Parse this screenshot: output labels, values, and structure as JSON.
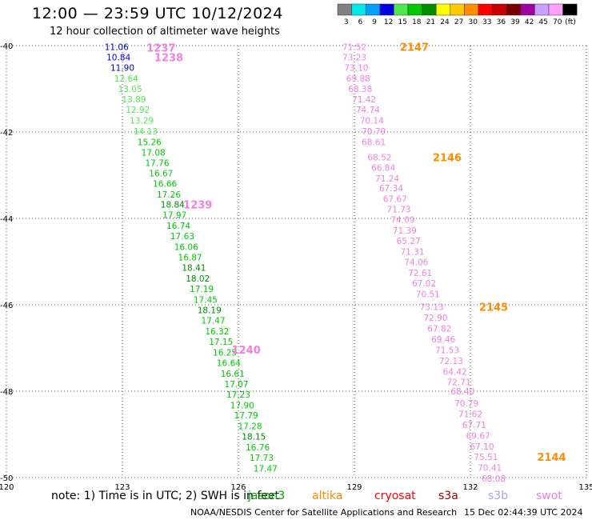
{
  "header": {
    "title": "12:00 — 23:59 UTC 10/12/2024",
    "subtitle": "12 hour collection of altimeter wave heights"
  },
  "footer": {
    "note": "note: 1) Time is in UTC; 2) SWH is in feet",
    "credit": "NOAA/NESDIS Center for Satellite Applications and Research",
    "timestamp": "15 Dec 02:44:39 UTC 2024"
  },
  "satellites": [
    {
      "name": "jason3",
      "color": "#00a000"
    },
    {
      "name": "altika",
      "color": "#ff8c00"
    },
    {
      "name": "cryosat",
      "color": "#ff0000"
    },
    {
      "name": "s3a",
      "color": "#a00000"
    },
    {
      "name": "s3b",
      "color": "#b0a0f0"
    },
    {
      "name": "swot",
      "color": "#f080e0"
    }
  ],
  "chart_data": {
    "type": "scatter",
    "title": "12:00 — 23:59 UTC 10/12/2024",
    "subtitle": "12 hour collection of altimeter wave heights",
    "xlim": [
      120,
      135
    ],
    "ylim": [
      -50,
      -40
    ],
    "x_ticks": [
      120,
      123,
      126,
      129,
      132,
      135
    ],
    "y_ticks": [
      -40,
      -42,
      -44,
      -46,
      -48,
      -50
    ],
    "grid": true,
    "color_scale": {
      "unit": "(ft)",
      "bins": [
        {
          "label": "3",
          "color": "#808080"
        },
        {
          "label": "6",
          "color": "#00e8e8"
        },
        {
          "label": "9",
          "color": "#00a0ff"
        },
        {
          "label": "12",
          "color": "#0000e0"
        },
        {
          "label": "15",
          "color": "#50e850"
        },
        {
          "label": "18",
          "color": "#00c800"
        },
        {
          "label": "21",
          "color": "#008c00"
        },
        {
          "label": "24",
          "color": "#ffff00"
        },
        {
          "label": "27",
          "color": "#ffc800"
        },
        {
          "label": "30",
          "color": "#ff8c00"
        },
        {
          "label": "33",
          "color": "#ff0000"
        },
        {
          "label": "36",
          "color": "#c80000"
        },
        {
          "label": "39",
          "color": "#780000"
        },
        {
          "label": "42",
          "color": "#a000a0"
        },
        {
          "label": "45",
          "color": "#c8a0ff"
        },
        {
          "label": "70",
          "color": "#ffa0ff"
        },
        {
          "label": "",
          "color": "#000000"
        }
      ]
    },
    "track_labels": [
      {
        "text": "1237",
        "lon": 124.0,
        "lat": -40.05,
        "color": "#f080e0"
      },
      {
        "text": "1238",
        "lon": 124.2,
        "lat": -40.27,
        "color": "#f080e0"
      },
      {
        "text": "1239",
        "lon": 124.95,
        "lat": -43.68,
        "color": "#f080e0"
      },
      {
        "text": "1240",
        "lon": 126.2,
        "lat": -47.04,
        "color": "#f080e0"
      },
      {
        "text": "2147",
        "lon": 130.55,
        "lat": -40.03,
        "color": "#ff8c00"
      },
      {
        "text": "2146",
        "lon": 131.4,
        "lat": -42.58,
        "color": "#ff8c00"
      },
      {
        "text": "2145",
        "lon": 132.6,
        "lat": -46.05,
        "color": "#ff8c00"
      },
      {
        "text": "2144",
        "lon": 134.1,
        "lat": -49.52,
        "color": "#ff8c00"
      }
    ],
    "series": [
      {
        "name": "jason3",
        "points": [
          {
            "lon": 122.85,
            "lat": -40.03,
            "v": "11.06",
            "color": "#0000e0"
          },
          {
            "lon": 122.9,
            "lat": -40.27,
            "v": "10.84",
            "color": "#0000e0"
          },
          {
            "lon": 123.0,
            "lat": -40.51,
            "v": "11.90",
            "color": "#0000e0"
          },
          {
            "lon": 123.1,
            "lat": -40.76,
            "v": "12.64",
            "color": "#50e850"
          },
          {
            "lon": 123.2,
            "lat": -41.0,
            "v": "13.05",
            "color": "#50e850"
          },
          {
            "lon": 123.3,
            "lat": -41.24,
            "v": "13.89",
            "color": "#50e850"
          },
          {
            "lon": 123.4,
            "lat": -41.48,
            "v": "12.92",
            "color": "#50e850"
          },
          {
            "lon": 123.5,
            "lat": -41.73,
            "v": "13.29",
            "color": "#50e850"
          },
          {
            "lon": 123.6,
            "lat": -41.98,
            "v": "14.13",
            "color": "#50e850"
          },
          {
            "lon": 123.7,
            "lat": -42.23,
            "v": "15.26",
            "color": "#00c800"
          },
          {
            "lon": 123.8,
            "lat": -42.47,
            "v": "17.08",
            "color": "#00c800"
          },
          {
            "lon": 123.9,
            "lat": -42.71,
            "v": "17.76",
            "color": "#00c800"
          },
          {
            "lon": 124.0,
            "lat": -42.95,
            "v": "16.67",
            "color": "#00c800"
          },
          {
            "lon": 124.1,
            "lat": -43.19,
            "v": "16.66",
            "color": "#00c800"
          },
          {
            "lon": 124.2,
            "lat": -43.44,
            "v": "17.26",
            "color": "#00c800"
          },
          {
            "lon": 124.3,
            "lat": -43.68,
            "v": "18.84",
            "color": "#008c00"
          },
          {
            "lon": 124.35,
            "lat": -43.92,
            "v": "17.97",
            "color": "#00c800"
          },
          {
            "lon": 124.45,
            "lat": -44.17,
            "v": "16.74",
            "color": "#00c800"
          },
          {
            "lon": 124.55,
            "lat": -44.41,
            "v": "17.63",
            "color": "#00c800"
          },
          {
            "lon": 124.65,
            "lat": -44.66,
            "v": "16.06",
            "color": "#00c800"
          },
          {
            "lon": 124.75,
            "lat": -44.9,
            "v": "16.87",
            "color": "#00c800"
          },
          {
            "lon": 124.85,
            "lat": -45.14,
            "v": "18.41",
            "color": "#008c00"
          },
          {
            "lon": 124.95,
            "lat": -45.39,
            "v": "18.02",
            "color": "#008c00"
          },
          {
            "lon": 125.05,
            "lat": -45.63,
            "v": "17.19",
            "color": "#00c800"
          },
          {
            "lon": 125.15,
            "lat": -45.88,
            "v": "17.45",
            "color": "#00c800"
          },
          {
            "lon": 125.25,
            "lat": -46.12,
            "v": "18.19",
            "color": "#008c00"
          },
          {
            "lon": 125.35,
            "lat": -46.36,
            "v": "17.47",
            "color": "#00c800"
          },
          {
            "lon": 125.45,
            "lat": -46.61,
            "v": "16.32",
            "color": "#00c800"
          },
          {
            "lon": 125.55,
            "lat": -46.85,
            "v": "17.15",
            "color": "#00c800"
          },
          {
            "lon": 125.65,
            "lat": -47.1,
            "v": "16.25",
            "color": "#00c800"
          },
          {
            "lon": 125.75,
            "lat": -47.34,
            "v": "16.64",
            "color": "#00c800"
          },
          {
            "lon": 125.85,
            "lat": -47.59,
            "v": "16.61",
            "color": "#00c800"
          },
          {
            "lon": 125.95,
            "lat": -47.83,
            "v": "17.07",
            "color": "#00c800"
          },
          {
            "lon": 126.0,
            "lat": -48.07,
            "v": "17.23",
            "color": "#00c800"
          },
          {
            "lon": 126.1,
            "lat": -48.32,
            "v": "17.90",
            "color": "#00c800"
          },
          {
            "lon": 126.2,
            "lat": -48.56,
            "v": "17.79",
            "color": "#00c800"
          },
          {
            "lon": 126.3,
            "lat": -48.81,
            "v": "17.28",
            "color": "#00c800"
          },
          {
            "lon": 126.4,
            "lat": -49.05,
            "v": "18.15",
            "color": "#008c00"
          },
          {
            "lon": 126.5,
            "lat": -49.3,
            "v": "16.76",
            "color": "#00c800"
          },
          {
            "lon": 126.6,
            "lat": -49.54,
            "v": "17.73",
            "color": "#00c800"
          },
          {
            "lon": 126.7,
            "lat": -49.79,
            "v": "17.47",
            "color": "#00c800"
          }
        ]
      },
      {
        "name": "swot",
        "points": [
          {
            "lon": 129.0,
            "lat": -40.03,
            "v": "71.52"
          },
          {
            "lon": 129.0,
            "lat": -40.27,
            "v": "73.23"
          },
          {
            "lon": 129.05,
            "lat": -40.51,
            "v": "73.10"
          },
          {
            "lon": 129.1,
            "lat": -40.76,
            "v": "69.88"
          },
          {
            "lon": 129.15,
            "lat": -41.0,
            "v": "68.38"
          },
          {
            "lon": 129.25,
            "lat": -41.24,
            "v": "71.42"
          },
          {
            "lon": 129.35,
            "lat": -41.48,
            "v": "74.74"
          },
          {
            "lon": 129.45,
            "lat": -41.73,
            "v": "70.14"
          },
          {
            "lon": 129.5,
            "lat": -41.98,
            "v": "70.79"
          },
          {
            "lon": 129.5,
            "lat": -42.23,
            "v": "68.61"
          },
          {
            "lon": 129.65,
            "lat": -42.58,
            "v": "68.52"
          },
          {
            "lon": 129.75,
            "lat": -42.82,
            "v": "66.84"
          },
          {
            "lon": 129.85,
            "lat": -43.07,
            "v": "71.24"
          },
          {
            "lon": 129.95,
            "lat": -43.3,
            "v": "67.34"
          },
          {
            "lon": 130.05,
            "lat": -43.55,
            "v": "67.67"
          },
          {
            "lon": 130.15,
            "lat": -43.79,
            "v": "71.73"
          },
          {
            "lon": 130.25,
            "lat": -44.03,
            "v": "74.09"
          },
          {
            "lon": 130.3,
            "lat": -44.28,
            "v": "71.39"
          },
          {
            "lon": 130.4,
            "lat": -44.52,
            "v": "65.27"
          },
          {
            "lon": 130.5,
            "lat": -44.77,
            "v": "71.31"
          },
          {
            "lon": 130.6,
            "lat": -45.01,
            "v": "74.06"
          },
          {
            "lon": 130.7,
            "lat": -45.26,
            "v": "72.61"
          },
          {
            "lon": 130.8,
            "lat": -45.5,
            "v": "67.02"
          },
          {
            "lon": 130.9,
            "lat": -45.75,
            "v": "70.51"
          },
          {
            "lon": 131.0,
            "lat": -46.05,
            "v": "73.13"
          },
          {
            "lon": 131.1,
            "lat": -46.3,
            "v": "72.90"
          },
          {
            "lon": 131.2,
            "lat": -46.55,
            "v": "67.82"
          },
          {
            "lon": 131.3,
            "lat": -46.8,
            "v": "69.46"
          },
          {
            "lon": 131.4,
            "lat": -47.05,
            "v": "71.53"
          },
          {
            "lon": 131.5,
            "lat": -47.3,
            "v": "72.13"
          },
          {
            "lon": 131.6,
            "lat": -47.55,
            "v": "64.42"
          },
          {
            "lon": 131.7,
            "lat": -47.79,
            "v": "72.71"
          },
          {
            "lon": 131.8,
            "lat": -48.0,
            "v": "68.40"
          },
          {
            "lon": 131.9,
            "lat": -48.28,
            "v": "70.79"
          },
          {
            "lon": 132.0,
            "lat": -48.53,
            "v": "71.62"
          },
          {
            "lon": 132.1,
            "lat": -48.78,
            "v": "67.71"
          },
          {
            "lon": 132.2,
            "lat": -49.03,
            "v": "69.67"
          },
          {
            "lon": 132.3,
            "lat": -49.28,
            "v": "67.10"
          },
          {
            "lon": 132.4,
            "lat": -49.52,
            "v": "75.51"
          },
          {
            "lon": 132.5,
            "lat": -49.77,
            "v": "70.41"
          },
          {
            "lon": 132.6,
            "lat": -50.02,
            "v": "68.08"
          }
        ]
      }
    ]
  }
}
